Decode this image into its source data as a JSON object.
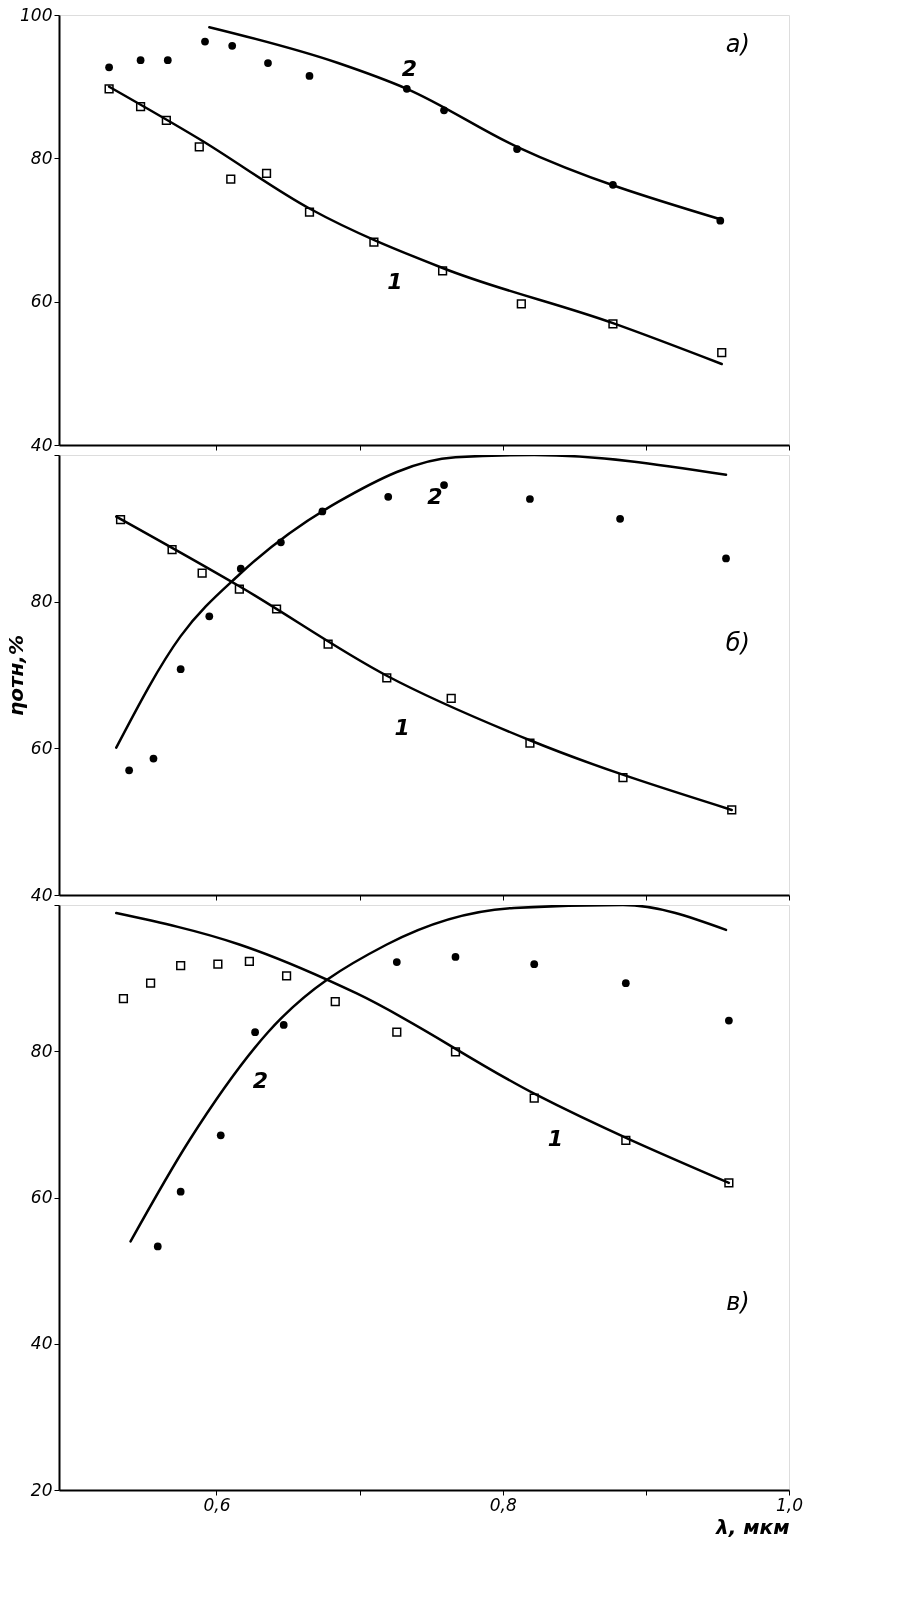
{
  "chart_data": [
    {
      "type": "scatter",
      "xlim": [
        0.49,
        1.0
      ],
      "xticks": [
        {
          "value": 0.6,
          "label": null
        },
        {
          "value": 0.7,
          "label": null
        },
        {
          "value": 0.8,
          "label": null
        },
        {
          "value": 0.9,
          "label": null
        },
        {
          "value": 1.0,
          "label": null
        }
      ],
      "ylim": [
        40,
        100
      ],
      "yticks": [
        100,
        80,
        60,
        40
      ],
      "tick_labels": "y",
      "grid": false,
      "annotations": [
        "а)",
        "2",
        "1"
      ],
      "series": [
        {
          "marker": "square",
          "color": "#000000",
          "x": [
            0.525,
            0.547,
            0.565,
            0.588,
            0.61,
            0.635,
            0.665,
            0.71,
            0.758,
            0.813,
            0.877,
            0.953
          ],
          "values": [
            89.7,
            87.2,
            85.3,
            81.6,
            77.1,
            77.9,
            72.5,
            68.3,
            64.3,
            59.7,
            56.9,
            52.9
          ]
        },
        {
          "marker": "circle",
          "color": "#000000",
          "x": [
            0.525,
            0.547,
            0.566,
            0.592,
            0.611,
            0.636,
            0.665,
            0.733,
            0.759,
            0.81,
            0.877,
            0.952
          ],
          "values": [
            92.7,
            93.7,
            93.7,
            96.3,
            95.7,
            93.3,
            91.5,
            89.7,
            86.7,
            81.3,
            76.3,
            71.3
          ]
        },
        {
          "type": "line",
          "line_style": "solid",
          "color": "#000000",
          "x": [
            0.525,
            0.588,
            0.665,
            0.758,
            0.877,
            0.953
          ],
          "values": [
            90,
            82.7,
            73,
            64.7,
            57,
            51.3
          ]
        },
        {
          "type": "line",
          "line_style": "solid",
          "color": "#000000",
          "x": [
            0.595,
            0.685,
            0.733,
            0.81,
            0.952
          ],
          "values": [
            98.3,
            93.3,
            89.7,
            81.6,
            71.5
          ]
        }
      ]
    },
    {
      "type": "scatter",
      "ylabel": "ηотн,%",
      "xlim": [
        0.49,
        1.0
      ],
      "xticks": [
        {
          "value": 0.6,
          "label": null
        },
        {
          "value": 0.7,
          "label": null
        },
        {
          "value": 0.8,
          "label": null
        },
        {
          "value": 0.9,
          "label": null
        },
        {
          "value": 1.0,
          "label": null
        }
      ],
      "ylim": [
        40,
        100
      ],
      "yticks": [
        {
          "value": 100,
          "label": null
        },
        80,
        60,
        40
      ],
      "tick_labels": "y",
      "grid": false,
      "annotations": [
        "б)",
        "2",
        "1"
      ],
      "series": [
        {
          "marker": "square",
          "color": "#000000",
          "x": [
            0.533,
            0.569,
            0.59,
            0.616,
            0.642,
            0.678,
            0.719,
            0.764,
            0.819,
            0.884,
            0.96
          ],
          "values": [
            91.2,
            87.1,
            83.9,
            81.7,
            79.0,
            74.2,
            69.6,
            66.8,
            60.7,
            56.0,
            51.6
          ]
        },
        {
          "marker": "circle",
          "color": "#000000",
          "x": [
            0.539,
            0.556,
            0.575,
            0.595,
            0.617,
            0.645,
            0.674,
            0.72,
            0.759,
            0.819,
            0.882,
            0.956
          ],
          "values": [
            57.0,
            58.6,
            70.8,
            78.0,
            84.5,
            88.1,
            92.3,
            94.3,
            95.9,
            94.0,
            91.3,
            85.9
          ]
        },
        {
          "type": "line",
          "line_style": "solid",
          "color": "#000000",
          "x": [
            0.53,
            0.616,
            0.719,
            0.819,
            0.96
          ],
          "values": [
            91.6,
            82.1,
            69.9,
            61.1,
            51.6
          ]
        },
        {
          "type": "line",
          "line_style": "solid",
          "color": "#000000",
          "x": [
            0.53,
            0.575,
            0.616,
            0.685,
            0.767,
            0.822,
            0.956
          ],
          "values": [
            60.1,
            75.3,
            83.7,
            93.6,
            99.7,
            100,
            97.3
          ]
        }
      ]
    },
    {
      "type": "scatter",
      "xlabel": "λ, мкм",
      "xlim": [
        0.49,
        1.0
      ],
      "xticks": [
        {
          "value": 0.6,
          "label": "0,6"
        },
        {
          "value": 0.7,
          "label": null
        },
        {
          "value": 0.8,
          "label": "0,8"
        },
        {
          "value": 0.9,
          "label": null
        },
        {
          "value": 1.0,
          "label": "1,0"
        }
      ],
      "ylim": [
        20,
        100
      ],
      "yticks": [
        {
          "value": 100,
          "label": null
        },
        80,
        60,
        40,
        20
      ],
      "grid": false,
      "annotations": [
        "в)",
        "2",
        "1"
      ],
      "series": [
        {
          "marker": "square",
          "color": "#000000",
          "x": [
            0.535,
            0.554,
            0.575,
            0.601,
            0.623,
            0.649,
            0.683,
            0.726,
            0.767,
            0.822,
            0.886,
            0.958
          ],
          "values": [
            87.2,
            89.3,
            91.7,
            91.9,
            92.3,
            90.3,
            86.8,
            82.6,
            79.9,
            73.6,
            67.8,
            62.0
          ]
        },
        {
          "marker": "circle",
          "color": "#000000",
          "x": [
            0.559,
            0.575,
            0.603,
            0.627,
            0.647,
            0.726,
            0.767,
            0.822,
            0.886,
            0.958
          ],
          "values": [
            53.3,
            60.8,
            68.5,
            82.6,
            83.6,
            92.2,
            92.9,
            91.9,
            89.3,
            84.2
          ]
        },
        {
          "type": "line",
          "line_style": "solid",
          "color": "#000000",
          "x": [
            0.53,
            0.616,
            0.698,
            0.822,
            0.958
          ],
          "values": [
            98.9,
            94.6,
            87.9,
            74.2,
            62.0
          ]
        },
        {
          "type": "line",
          "line_style": "solid",
          "color": "#000000",
          "x": [
            0.54,
            0.581,
            0.636,
            0.719,
            0.808,
            0.884,
            0.956
          ],
          "values": [
            54.0,
            67.8,
            82.6,
            94.6,
            99.6,
            100,
            96.6
          ]
        }
      ]
    }
  ]
}
